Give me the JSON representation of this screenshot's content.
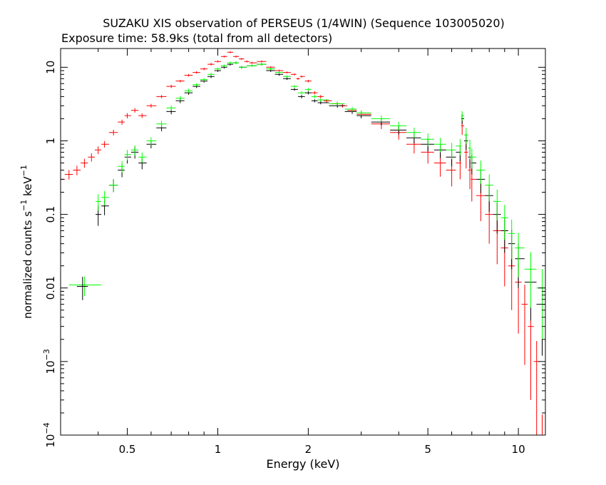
{
  "chart_data": {
    "type": "scatter",
    "title": "SUZAKU XIS observation of PERSEUS (1/4WIN) (Sequence 103005020)",
    "subtitle": "Exposure time: 58.9ks (total from all detectors)",
    "xlabel": "Energy (keV)",
    "ylabel_parts": {
      "prefix": "normalized counts s",
      "exp1": "−1",
      "middle": " keV",
      "exp2": "−1"
    },
    "x_scale": "log",
    "y_scale": "log",
    "xlim": [
      0.3,
      12.3
    ],
    "ylim": [
      0.0001,
      18
    ],
    "x_ticks": [
      {
        "value": 0.5,
        "label": "0.5"
      },
      {
        "value": 1,
        "label": "1"
      },
      {
        "value": 2,
        "label": "2"
      },
      {
        "value": 5,
        "label": "5"
      },
      {
        "value": 10,
        "label": "10"
      }
    ],
    "y_ticks": [
      {
        "value": 10,
        "base": "10",
        "exp": ""
      },
      {
        "value": 1,
        "base": "1",
        "exp": ""
      },
      {
        "value": 0.1,
        "base": "0.1",
        "exp": ""
      },
      {
        "value": 0.01,
        "base": "0.01",
        "exp": ""
      },
      {
        "value": 0.001,
        "base": "10",
        "exp": "−3"
      },
      {
        "value": 0.0001,
        "base": "10",
        "exp": "−4"
      }
    ],
    "grid": false,
    "legend": "none",
    "series": [
      {
        "color": "#ff0000",
        "x": [
          0.3,
          0.32,
          0.34,
          0.36,
          0.38,
          0.4,
          0.42,
          0.45,
          0.48,
          0.5,
          0.53,
          0.56,
          0.6,
          0.65,
          0.7,
          0.75,
          0.8,
          0.85,
          0.9,
          0.95,
          1.0,
          1.05,
          1.1,
          1.15,
          1.2,
          1.25,
          1.3,
          1.4,
          1.5,
          1.6,
          1.7,
          1.8,
          1.85,
          1.9,
          2.0,
          2.1,
          2.2,
          2.3,
          2.5,
          2.6,
          2.8,
          3.0,
          3.5,
          4.0,
          4.5,
          5.0,
          5.5,
          6.0,
          6.4,
          6.5,
          6.7,
          6.9,
          7.0,
          7.5,
          8.0,
          8.5,
          9.0,
          9.5,
          10.0,
          10.5,
          11.0,
          11.5,
          12.0
        ],
        "y": [
          0.3,
          0.35,
          0.4,
          0.5,
          0.6,
          0.75,
          0.9,
          1.3,
          1.8,
          2.2,
          2.6,
          2.2,
          3.0,
          4.0,
          5.5,
          6.5,
          7.8,
          8.5,
          9.5,
          11,
          12,
          14,
          16,
          14,
          13,
          12,
          11.5,
          12,
          10,
          9,
          8.5,
          8.0,
          7.0,
          7.5,
          6.5,
          4.5,
          4.0,
          3.5,
          3.2,
          3.0,
          2.6,
          2.3,
          1.7,
          1.3,
          0.9,
          0.7,
          0.5,
          0.4,
          0.5,
          1.6,
          0.7,
          0.4,
          0.3,
          0.18,
          0.1,
          0.06,
          0.035,
          0.02,
          0.012,
          0.006,
          0.003,
          0.001,
          0.0001
        ],
        "yerr_frac": [
          0.15,
          0.15,
          0.15,
          0.14,
          0.13,
          0.12,
          0.1,
          0.09,
          0.08,
          0.08,
          0.07,
          0.07,
          0.06,
          0.05,
          0.05,
          0.04,
          0.04,
          0.04,
          0.04,
          0.04,
          0.03,
          0.03,
          0.03,
          0.03,
          0.03,
          0.03,
          0.03,
          0.03,
          0.03,
          0.03,
          0.03,
          0.03,
          0.03,
          0.03,
          0.04,
          0.05,
          0.05,
          0.05,
          0.06,
          0.06,
          0.08,
          0.1,
          0.15,
          0.2,
          0.25,
          0.3,
          0.35,
          0.4,
          0.4,
          0.25,
          0.4,
          0.45,
          0.5,
          0.55,
          0.6,
          0.65,
          0.7,
          0.75,
          0.8,
          0.85,
          0.9,
          0.9,
          0.9
        ]
      },
      {
        "color": "#000000",
        "x": [
          0.4,
          0.42,
          0.45,
          0.48,
          0.5,
          0.53,
          0.56,
          0.6,
          0.65,
          0.7,
          0.75,
          0.8,
          0.85,
          0.9,
          0.95,
          1.0,
          1.05,
          1.1,
          1.15,
          1.2,
          1.3,
          1.4,
          1.5,
          1.6,
          1.7,
          1.8,
          1.9,
          2.0,
          2.1,
          2.2,
          2.5,
          2.8,
          3.0,
          3.5,
          4.0,
          4.5,
          5.0,
          5.5,
          6.0,
          6.4,
          6.5,
          6.7,
          6.9,
          7.0,
          7.5,
          8.0,
          8.5,
          9.0,
          9.5,
          10.0,
          11.0,
          12.0
        ],
        "y": [
          0.1,
          0.13,
          0.25,
          0.4,
          0.6,
          0.7,
          0.5,
          0.9,
          1.5,
          2.5,
          3.5,
          4.5,
          5.5,
          6.5,
          7.5,
          9,
          10,
          11,
          11.5,
          10,
          10.5,
          11,
          9,
          8.0,
          7.0,
          5.0,
          4.0,
          4.5,
          3.5,
          3.3,
          3.0,
          2.5,
          2.2,
          1.8,
          1.4,
          1.1,
          0.9,
          0.75,
          0.6,
          0.7,
          2.0,
          1.0,
          0.6,
          0.5,
          0.3,
          0.18,
          0.1,
          0.06,
          0.04,
          0.025,
          0.012,
          0.006
        ],
        "yerr_frac": [
          0.3,
          0.25,
          0.2,
          0.2,
          0.18,
          0.18,
          0.18,
          0.12,
          0.1,
          0.08,
          0.07,
          0.06,
          0.05,
          0.05,
          0.05,
          0.04,
          0.04,
          0.04,
          0.04,
          0.04,
          0.04,
          0.04,
          0.04,
          0.04,
          0.04,
          0.04,
          0.05,
          0.05,
          0.05,
          0.05,
          0.06,
          0.07,
          0.08,
          0.1,
          0.13,
          0.16,
          0.2,
          0.22,
          0.25,
          0.25,
          0.15,
          0.25,
          0.3,
          0.3,
          0.35,
          0.4,
          0.45,
          0.5,
          0.55,
          0.6,
          0.7,
          0.8
        ]
      },
      {
        "color": "#00ff00",
        "x": [
          0.4,
          0.42,
          0.45,
          0.48,
          0.5,
          0.53,
          0.56,
          0.6,
          0.65,
          0.7,
          0.75,
          0.8,
          0.85,
          0.9,
          0.95,
          1.0,
          1.05,
          1.1,
          1.15,
          1.2,
          1.3,
          1.4,
          1.5,
          1.6,
          1.7,
          1.8,
          1.9,
          2.0,
          2.1,
          2.2,
          2.5,
          2.8,
          3.0,
          3.5,
          4.0,
          4.5,
          5.0,
          5.5,
          6.0,
          6.4,
          6.5,
          6.7,
          6.9,
          7.0,
          7.5,
          8.0,
          8.5,
          9.0,
          9.5,
          10.0,
          11.0,
          12.0
        ],
        "y": [
          0.15,
          0.17,
          0.25,
          0.45,
          0.65,
          0.75,
          0.6,
          1.0,
          1.7,
          2.8,
          3.8,
          4.8,
          5.8,
          6.8,
          8,
          9.5,
          10.5,
          11.5,
          11.5,
          10,
          10.5,
          11,
          9.5,
          8.5,
          7.5,
          5.5,
          4.5,
          5.0,
          4.0,
          3.6,
          3.2,
          2.7,
          2.4,
          2.0,
          1.6,
          1.3,
          1.05,
          0.9,
          0.75,
          0.85,
          2.2,
          1.2,
          0.8,
          0.6,
          0.4,
          0.25,
          0.15,
          0.09,
          0.055,
          0.035,
          0.018,
          0.01
        ],
        "yerr_frac": [
          0.25,
          0.22,
          0.2,
          0.18,
          0.16,
          0.16,
          0.16,
          0.12,
          0.1,
          0.08,
          0.07,
          0.06,
          0.05,
          0.05,
          0.05,
          0.04,
          0.04,
          0.04,
          0.04,
          0.04,
          0.04,
          0.04,
          0.04,
          0.04,
          0.04,
          0.04,
          0.05,
          0.05,
          0.05,
          0.05,
          0.06,
          0.07,
          0.08,
          0.1,
          0.13,
          0.16,
          0.2,
          0.22,
          0.25,
          0.25,
          0.15,
          0.25,
          0.3,
          0.3,
          0.35,
          0.4,
          0.45,
          0.5,
          0.55,
          0.6,
          0.7,
          0.8
        ]
      },
      {
        "color": "#00ff00",
        "x": [
          0.36
        ],
        "y": [
          0.011
        ],
        "xerr": [
          0.32,
          0.41
        ],
        "yerr_frac": [
          0.3
        ]
      },
      {
        "color": "#000000",
        "x": [
          0.355
        ],
        "y": [
          0.0105
        ],
        "xerr": [
          0.34,
          0.37
        ],
        "yerr_frac": [
          0.35
        ]
      }
    ]
  }
}
